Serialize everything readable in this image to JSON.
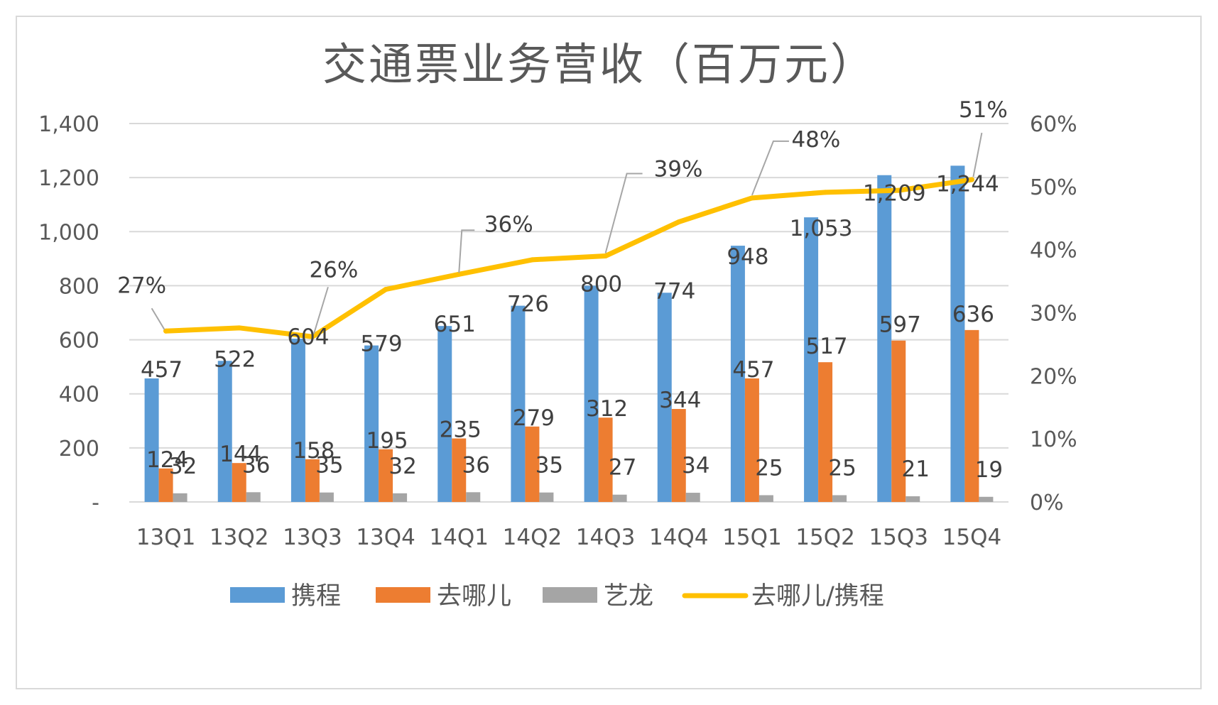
{
  "chart_data": {
    "type": "bar",
    "title": "交通票业务营收（百万元）",
    "categories": [
      "13Q1",
      "13Q2",
      "13Q3",
      "13Q4",
      "14Q1",
      "14Q2",
      "14Q3",
      "14Q4",
      "15Q1",
      "15Q2",
      "15Q3",
      "15Q4"
    ],
    "series": [
      {
        "name": "携程",
        "kind": "bar",
        "axis": "left",
        "color": "#5B9BD5",
        "values": [
          457,
          522,
          604,
          579,
          651,
          726,
          800,
          774,
          948,
          1053,
          1209,
          1244
        ],
        "labels": [
          "457",
          "522",
          "604",
          "579",
          "651",
          "726",
          "800",
          "774",
          "948",
          "1,053",
          "1,209",
          "1,244"
        ]
      },
      {
        "name": "去哪儿",
        "kind": "bar",
        "axis": "left",
        "color": "#ED7D31",
        "values": [
          124,
          144,
          158,
          195,
          235,
          279,
          312,
          344,
          457,
          517,
          597,
          636
        ],
        "labels": [
          "124",
          "144",
          "158",
          "195",
          "235",
          "279",
          "312",
          "344",
          "457",
          "517",
          "597",
          "636"
        ]
      },
      {
        "name": "艺龙",
        "kind": "bar",
        "axis": "left",
        "color": "#A5A5A5",
        "values": [
          32,
          36,
          35,
          32,
          36,
          35,
          27,
          34,
          25,
          25,
          21,
          19
        ],
        "labels": [
          "32",
          "36",
          "35",
          "32",
          "36",
          "35",
          "27",
          "34",
          "25",
          "25",
          "21",
          "19"
        ]
      },
      {
        "name": "去哪儿/携程",
        "kind": "line",
        "axis": "right",
        "color": "#FFC000",
        "values": [
          27.1,
          27.6,
          26.2,
          33.7,
          36.1,
          38.4,
          39.0,
          44.4,
          48.2,
          49.1,
          49.4,
          51.1
        ]
      }
    ],
    "ratio_callouts": [
      {
        "index": 0,
        "label": "27%"
      },
      {
        "index": 2,
        "label": "26%"
      },
      {
        "index": 4,
        "label": "36%"
      },
      {
        "index": 6,
        "label": "39%"
      },
      {
        "index": 8,
        "label": "48%"
      },
      {
        "index": 11,
        "label": "51%"
      }
    ],
    "y_left": {
      "min": 0,
      "max": 1400,
      "step": 200,
      "ticks": [
        "-",
        "200",
        "400",
        "600",
        "800",
        "1,000",
        "1,200",
        "1,400"
      ]
    },
    "y_right": {
      "min": 0,
      "max": 60,
      "step": 10,
      "ticks": [
        "0%",
        "10%",
        "20%",
        "30%",
        "40%",
        "50%",
        "60%"
      ]
    },
    "grid": true,
    "legend_position": "bottom"
  }
}
